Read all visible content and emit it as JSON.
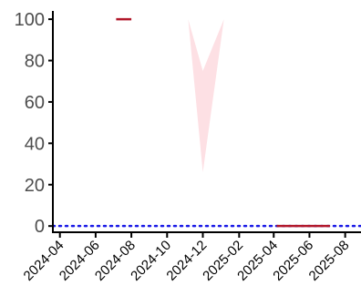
{
  "chart_data": {
    "type": "line",
    "title": "",
    "xlabel": "",
    "ylabel": "",
    "x_axis": {
      "kind": "date",
      "range": [
        "2024-03-20",
        "2025-08-28"
      ],
      "ticks": [
        "2024-04-01",
        "2024-06-01",
        "2024-08-01",
        "2024-10-01",
        "2024-12-01",
        "2025-02-01",
        "2025-04-01",
        "2025-06-01",
        "2025-08-01"
      ],
      "tick_labels": [
        "2024-04",
        "2024-06",
        "2024-08",
        "2024-10",
        "2024-12",
        "2025-02",
        "2025-04",
        "2025-06",
        "2025-08"
      ]
    },
    "y_axis": {
      "range": [
        -3,
        104
      ],
      "ticks": [
        0,
        20,
        40,
        60,
        80,
        100
      ],
      "tick_labels": [
        "0",
        "20",
        "40",
        "60",
        "80",
        "100"
      ]
    },
    "grid": false,
    "legend": "none",
    "series": [
      {
        "kind": "line",
        "color": "#b2182b",
        "points": [
          {
            "x": "2024-07-06",
            "y": 100
          },
          {
            "x": "2024-08-01",
            "y": 100
          }
        ]
      },
      {
        "kind": "line",
        "color": "#b2182b",
        "points": [
          {
            "x": "2025-04-06",
            "y": 0
          },
          {
            "x": "2025-07-06",
            "y": 0
          }
        ]
      },
      {
        "kind": "band",
        "color": "#fde0e4",
        "points": [
          {
            "x": "2024-11-06",
            "lower": 100,
            "upper": 100
          },
          {
            "x": "2024-12-01",
            "lower": 26,
            "upper": 75
          },
          {
            "x": "2025-01-06",
            "lower": 100,
            "upper": 100
          }
        ]
      }
    ],
    "reference_lines": [
      {
        "axis": "y",
        "value": 0,
        "style": "dotted",
        "color": "#1a1ae6"
      }
    ]
  }
}
